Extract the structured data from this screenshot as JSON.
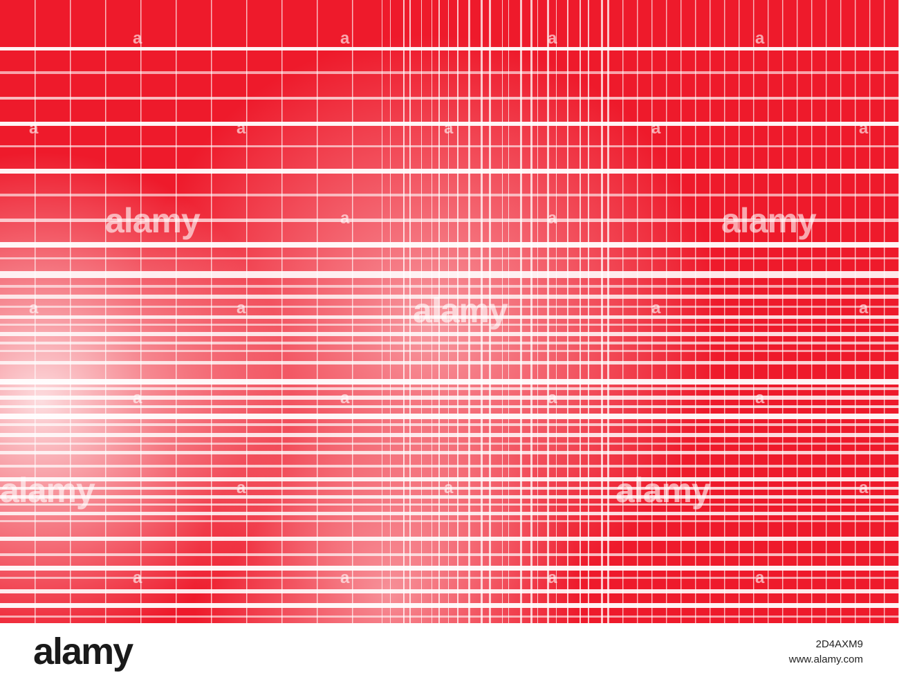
{
  "watermark": {
    "logo_text": "alamy",
    "mark": "a"
  },
  "footer": {
    "logo": "alamy",
    "image_id": "2D4AXM9",
    "site": "www.alamy.com"
  },
  "colors": {
    "background": "#ee1a2b",
    "lines": "#ffffff",
    "footer_background": "#ffffff",
    "footer_text": "#1a1a1a"
  },
  "icons": {
    "artwork": "red-white-plaid-lines-pattern"
  }
}
